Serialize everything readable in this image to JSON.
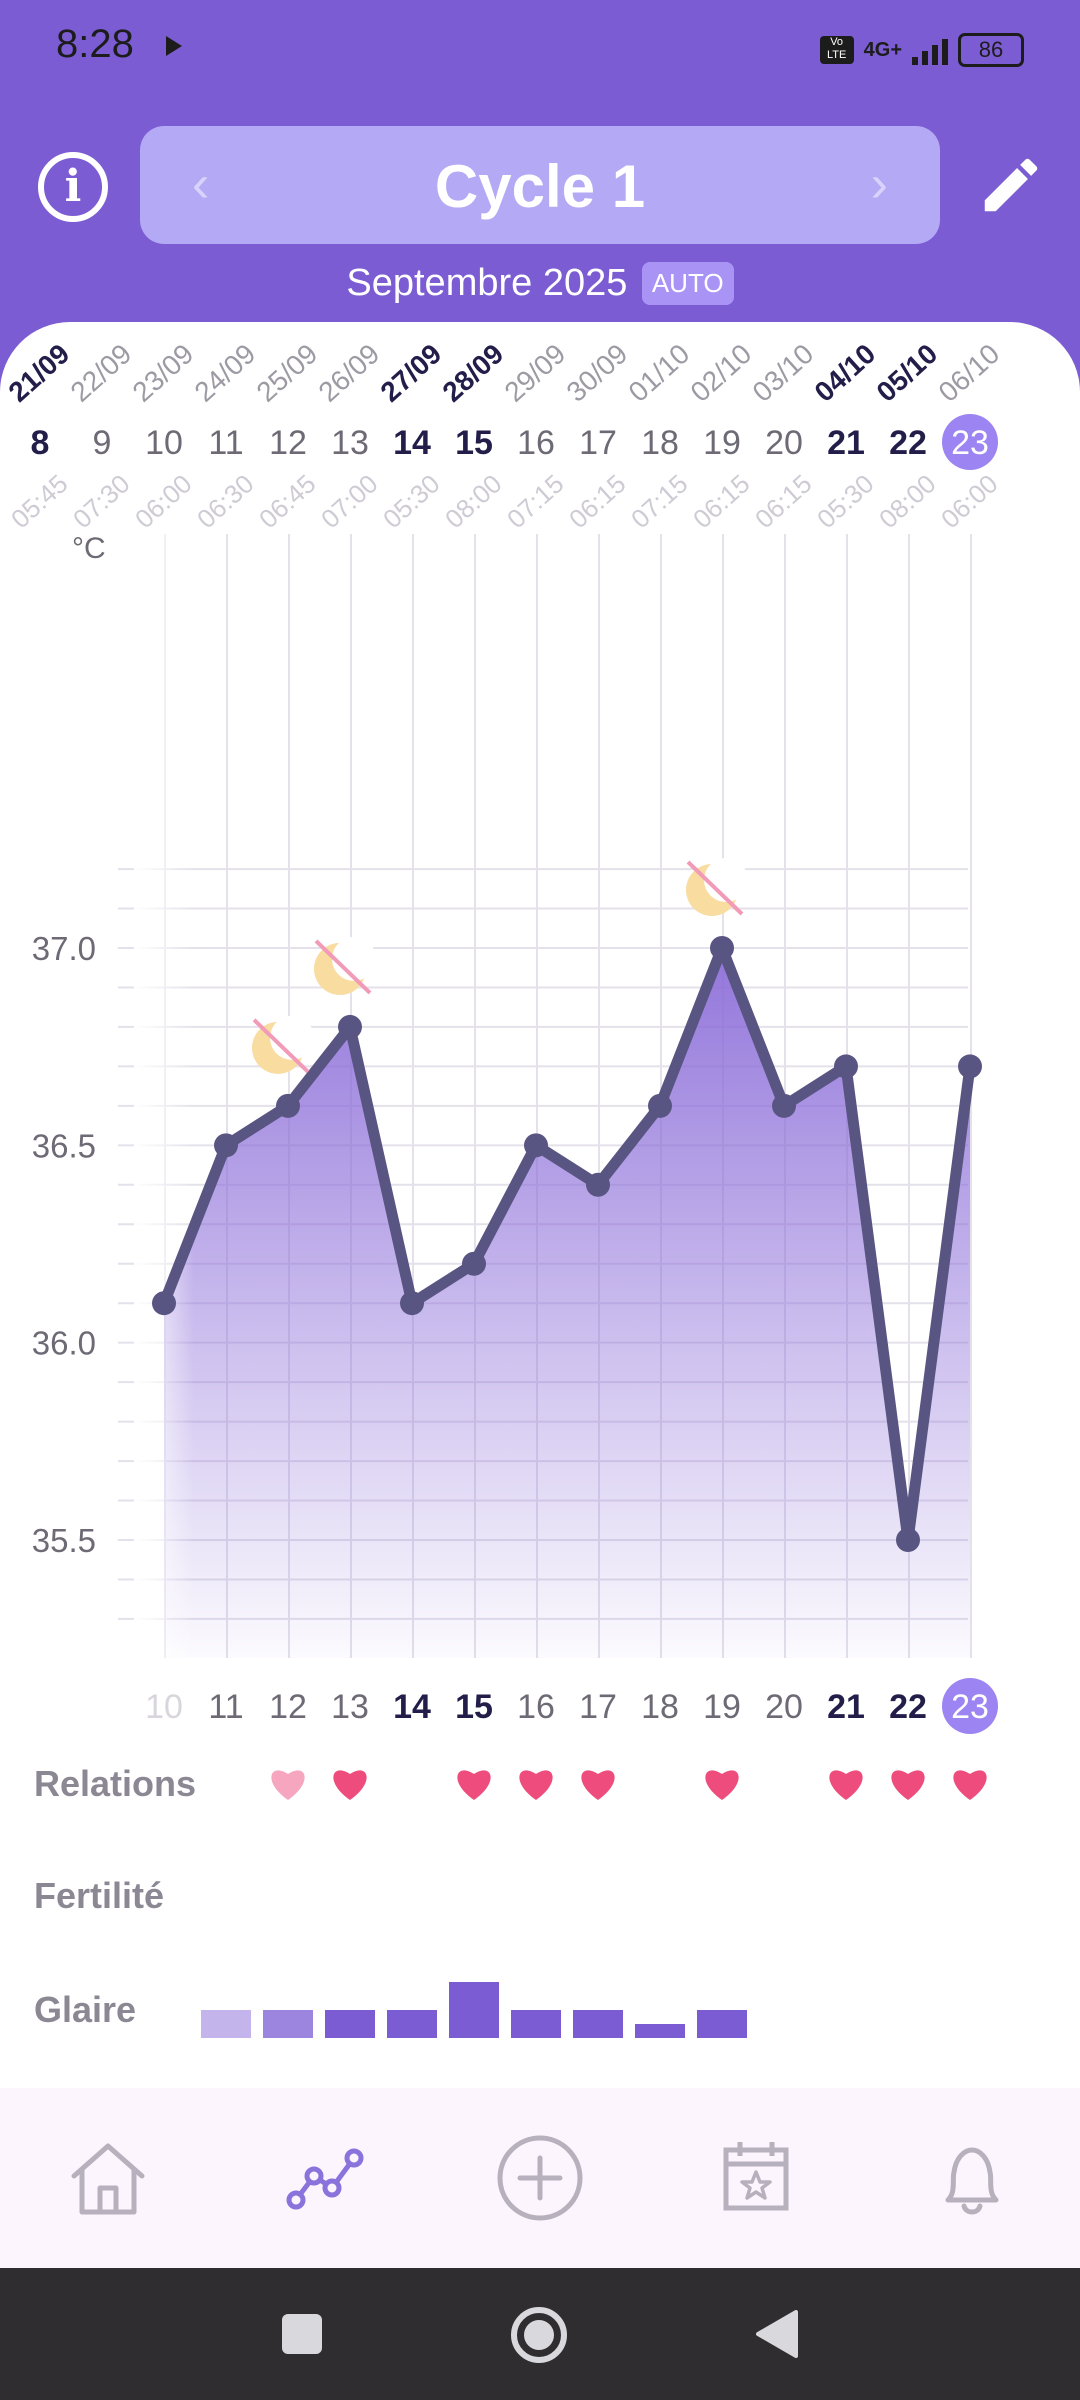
{
  "status": {
    "time": "8:28",
    "volte": "Vo LTE",
    "network": "4G+",
    "battery": "86",
    "colors": {
      "icons": "#1c1c1c"
    }
  },
  "header": {
    "title": "Cycle 1",
    "month": "Septembre 2025",
    "mode_badge": "AUTO",
    "icons": {
      "info": "info-icon",
      "prev": "chevron-left-icon",
      "next": "chevron-right-icon",
      "edit": "pencil-icon"
    },
    "colors": {
      "background": "#7b5cd3",
      "title_box": "#b4a9f4",
      "badge": "#a994f6"
    }
  },
  "chart_data": {
    "type": "line",
    "y_unit": "°C",
    "ylim": [
      35.3,
      37.2
    ],
    "y_ticks": [
      "35.5",
      "36.0",
      "36.5",
      "37.0"
    ],
    "grid": true,
    "columns": [
      {
        "date": "21/09",
        "day": "8",
        "time": "05:45",
        "temp": null,
        "bold": true
      },
      {
        "date": "22/09",
        "day": "9",
        "time": "07:30",
        "temp": null,
        "bold": false
      },
      {
        "date": "23/09",
        "day": "10",
        "time": "06:00",
        "temp": 36.1,
        "bold": false
      },
      {
        "date": "24/09",
        "day": "11",
        "time": "06:30",
        "temp": 36.5,
        "bold": false
      },
      {
        "date": "25/09",
        "day": "12",
        "time": "06:45",
        "temp": 36.6,
        "bold": false
      },
      {
        "date": "26/09",
        "day": "13",
        "time": "07:00",
        "temp": 36.8,
        "bold": false
      },
      {
        "date": "27/09",
        "day": "14",
        "time": "05:30",
        "temp": 36.1,
        "bold": true
      },
      {
        "date": "28/09",
        "day": "15",
        "time": "08:00",
        "temp": 36.2,
        "bold": true
      },
      {
        "date": "29/09",
        "day": "16",
        "time": "07:15",
        "temp": 36.5,
        "bold": false
      },
      {
        "date": "30/09",
        "day": "17",
        "time": "06:15",
        "temp": 36.4,
        "bold": false
      },
      {
        "date": "01/10",
        "day": "18",
        "time": "07:15",
        "temp": 36.6,
        "bold": false
      },
      {
        "date": "02/10",
        "day": "19",
        "time": "06:15",
        "temp": 37.0,
        "bold": false
      },
      {
        "date": "03/10",
        "day": "20",
        "time": "06:15",
        "temp": 36.6,
        "bold": false
      },
      {
        "date": "04/10",
        "day": "21",
        "time": "05:30",
        "temp": 36.7,
        "bold": true
      },
      {
        "date": "05/10",
        "day": "22",
        "time": "08:00",
        "temp": 35.5,
        "bold": true
      },
      {
        "date": "06/10",
        "day": "23",
        "time": "06:00",
        "temp": 36.7,
        "bold": false,
        "today": true
      }
    ],
    "sleep_markers": [
      {
        "day": "12",
        "temp": 36.6
      },
      {
        "day": "13",
        "temp": 36.8
      },
      {
        "day": "19",
        "temp": 37.0
      }
    ],
    "rows": {
      "relations": {
        "label": "Relations",
        "days": [
          "12",
          "13",
          "15",
          "16",
          "17",
          "19",
          "21",
          "22",
          "23"
        ],
        "faded_days": [
          "12"
        ]
      },
      "fertility": {
        "label": "Fertilité",
        "days": []
      },
      "mucus": {
        "label": "Glaire",
        "levels": [
          {
            "day": "11",
            "level": 1
          },
          {
            "day": "12",
            "level": 1
          },
          {
            "day": "13",
            "level": 1
          },
          {
            "day": "14",
            "level": 1
          },
          {
            "day": "15",
            "level": 2
          },
          {
            "day": "16",
            "level": 1
          },
          {
            "day": "17",
            "level": 1
          },
          {
            "day": "18",
            "level": 0.5
          },
          {
            "day": "19",
            "level": 1
          }
        ]
      }
    },
    "colors": {
      "line": "#595582",
      "fill": "#8d6fd9",
      "today": "#9c84f2",
      "heart": "#ee4c7c",
      "heart_faded": "#f7a6c0",
      "bar": "#7b5cd3",
      "moon": "#f8dca0",
      "strike": "#f29bb8"
    }
  },
  "navbar": {
    "items": [
      {
        "icon": "home-icon"
      },
      {
        "icon": "chart-icon",
        "active": true
      },
      {
        "icon": "add-circle-icon"
      },
      {
        "icon": "calendar-star-icon"
      },
      {
        "icon": "bell-icon"
      }
    ],
    "colors": {
      "inactive": "#b7b1bd",
      "active": "#8a74dc"
    }
  },
  "system_nav": {
    "icons": [
      "recents-icon",
      "home-circle-icon",
      "back-icon"
    ]
  }
}
